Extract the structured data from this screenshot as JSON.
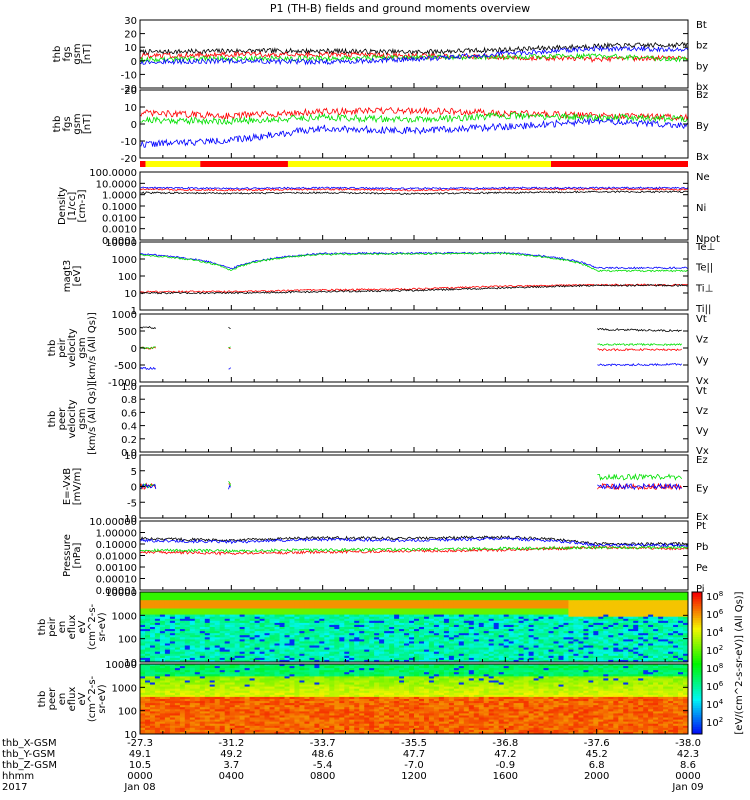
{
  "title": "P1 (TH-B) fields and ground moments overview",
  "colors": {
    "black": "#000000",
    "red": "#ff0000",
    "green": "#00e000",
    "blue": "#0000ff",
    "yellow": "#ffff00"
  },
  "panels": [
    {
      "ylabel": [
        "thb",
        "fgs",
        "gsm",
        "[nT]"
      ],
      "yticks": [
        "30",
        "20",
        "10",
        "0",
        "-10",
        "-20"
      ],
      "legend": [
        "Bt",
        "bz",
        "by",
        "bx"
      ],
      "legend_colors": [
        "black",
        "red",
        "green",
        "blue"
      ]
    },
    {
      "ylabel": [
        "thb",
        "fgs",
        "gsm",
        "[nT]"
      ],
      "yticks": [
        "20",
        "10",
        "0",
        "-10",
        "-20"
      ],
      "legend": [
        "Bz",
        "By",
        "Bx"
      ],
      "legend_colors": [
        "red",
        "green",
        "blue"
      ]
    },
    {
      "ylabel": [
        "Density",
        "[1/cc]",
        "[cm-3]"
      ],
      "yticks": [
        "100.0000",
        "10.0000",
        "1.0000",
        "0.1000",
        "0.0100",
        "0.0010",
        "0.0001"
      ],
      "legend": [
        "Ne",
        "Ni",
        "Npot"
      ],
      "legend_colors": [
        "red",
        "black",
        "blue"
      ]
    },
    {
      "ylabel": [
        "magt3",
        "[eV]"
      ],
      "yticks": [
        "10000",
        "1000",
        "100",
        "10",
        "1"
      ],
      "legend": [
        "Te⊥",
        "Te||",
        "Ti⊥",
        "Ti||"
      ],
      "legend_colors": [
        "red",
        "black",
        "blue",
        "green"
      ]
    },
    {
      "ylabel": [
        "thb",
        "peir",
        "velocity",
        "gsm",
        "[km/s (All Qs)]"
      ],
      "yticks": [
        "1000",
        "500",
        "0",
        "-500",
        "-1000"
      ],
      "legend": [
        "Vt",
        "Vz",
        "Vy",
        "Vx"
      ],
      "legend_colors": [
        "black",
        "red",
        "green",
        "blue"
      ]
    },
    {
      "ylabel": [
        "thb",
        "peer",
        "velocity",
        "gsm",
        "[km/s (All Qs)]"
      ],
      "yticks": [
        "1.0",
        "0.8",
        "0.6",
        "0.4",
        "0.2",
        "0.0"
      ],
      "legend": [
        "Vt",
        "Vz",
        "Vy",
        "Vx"
      ],
      "legend_colors": [
        "black",
        "red",
        "green",
        "blue"
      ]
    },
    {
      "ylabel": [
        "E=-VxB",
        "[mV/m]"
      ],
      "yticks": [
        "10",
        "5",
        "0",
        "-5",
        "-10"
      ],
      "legend": [
        "Ez",
        "Ey",
        "Ex"
      ],
      "legend_colors": [
        "red",
        "green",
        "blue"
      ]
    },
    {
      "ylabel": [
        "Pressure",
        "[nPa]"
      ],
      "yticks": [
        "10.00000",
        "1.00000",
        "0.10000",
        "0.01000",
        "0.00100",
        "0.00010",
        "0.00001"
      ],
      "legend": [
        "Pt",
        "Pb",
        "Pe",
        "Pi"
      ],
      "legend_colors": [
        "black",
        "red",
        "green",
        "blue"
      ]
    },
    {
      "ylabel": [
        "thb",
        "peir",
        "en",
        "eflux",
        "eV",
        "(cm^2-s-",
        "sr-eV)"
      ],
      "yticks": [
        "10000",
        "1000",
        "100",
        "10"
      ],
      "legend": [],
      "legend_colors": []
    },
    {
      "ylabel": [
        "thb",
        "peer",
        "en",
        "eflux",
        "eV",
        "(cm^2-s-",
        "sr-eV)"
      ],
      "yticks": [
        "10000",
        "1000",
        "100",
        "10"
      ],
      "legend": [],
      "legend_colors": []
    }
  ],
  "colorbar": {
    "ticks": [
      "10^8",
      "10^6",
      "10^4",
      "10^2"
    ],
    "label": "[eV/(cm^2-s-sr-eV)] (All Qs)]"
  },
  "orbit": {
    "labels": [
      "thb_X-GSM",
      "thb_Y-GSM",
      "thb_Z-GSM",
      "hhmm",
      "2017"
    ],
    "columns": [
      [
        "-27.3",
        "49.1",
        "10.5",
        "0000",
        "Jan 08"
      ],
      [
        "-31.2",
        "49.2",
        "3.7",
        "0400",
        ""
      ],
      [
        "-33.7",
        "48.6",
        "-5.4",
        "0800",
        ""
      ],
      [
        "-35.5",
        "47.7",
        "-7.0",
        "1200",
        ""
      ],
      [
        "-36.8",
        "47.2",
        "-0.9",
        "1600",
        ""
      ],
      [
        "-37.6",
        "45.2",
        "6.8",
        "2000",
        ""
      ],
      [
        "-38.0",
        "42.3",
        "8.6",
        "0000",
        "Jan 09"
      ]
    ]
  },
  "chart_data": {
    "type": "line",
    "title": "P1 (TH-B) fields and ground moments overview",
    "xlabel": "hhmm",
    "x": [
      "0000",
      "0400",
      "0800",
      "1200",
      "1600",
      "2000",
      "0000"
    ],
    "xlim": [
      "2017 Jan 08 0000",
      "2017 Jan 09 0000"
    ],
    "panels": [
      {
        "ylabel": "thb fgs gsm [nT]",
        "ylim": [
          -25,
          30
        ],
        "series": [
          {
            "name": "Bt",
            "values": [
              4,
              5,
              5,
              4,
              6,
              9,
              10
            ]
          },
          {
            "name": "bz",
            "values": [
              1,
              2,
              2,
              1,
              0,
              -2,
              0
            ]
          },
          {
            "name": "by",
            "values": [
              -2,
              -1,
              -1,
              0,
              0,
              1,
              -2
            ]
          },
          {
            "name": "bx",
            "values": [
              -4,
              -3,
              -4,
              -2,
              3,
              7,
              6
            ]
          }
        ]
      },
      {
        "ylabel": "thb fgs gsm [nT]",
        "ylim": [
          -25,
          25
        ],
        "series": [
          {
            "name": "Bz",
            "values": [
              8,
              6,
              9,
              10,
              8,
              6,
              5
            ]
          },
          {
            "name": "By",
            "values": [
              3,
              2,
              5,
              3,
              6,
              5,
              4
            ]
          },
          {
            "name": "Bx",
            "values": [
              -15,
              -12,
              -3,
              -5,
              -2,
              2,
              -1
            ]
          }
        ]
      },
      {
        "ylabel": "Density [1/cc] [cm-3]",
        "scale": "log",
        "ylim": [
          0.0001,
          100
        ],
        "series": [
          {
            "name": "Ne",
            "values": [
              3,
              2.5,
              3,
              2.5,
              3,
              3,
              3
            ]
          },
          {
            "name": "Ni",
            "values": [
              1.5,
              1.3,
              1.5,
              1.2,
              1.5,
              1.8,
              1.8
            ]
          },
          {
            "name": "Npot",
            "values": [
              4,
              3.5,
              4,
              3.5,
              4,
              4,
              4
            ]
          }
        ]
      },
      {
        "ylabel": "magt3 [eV]",
        "scale": "log",
        "ylim": [
          1,
          10000
        ],
        "series": [
          {
            "name": "Te⊥",
            "values": [
              12,
              12,
              15,
              17,
              25,
              30,
              30
            ]
          },
          {
            "name": "Te||",
            "values": [
              10,
              10,
              12,
              14,
              20,
              28,
              28
            ]
          },
          {
            "name": "Ti⊥",
            "values": [
              2000,
              250,
              2100,
              2200,
              2300,
              300,
              300
            ]
          },
          {
            "name": "Ti||",
            "values": [
              1800,
              200,
              1900,
              2000,
              2100,
              200,
              200
            ]
          }
        ]
      },
      {
        "ylabel": "thb peir velocity gsm [km/s (All Qs)]",
        "ylim": [
          -1000,
          1000
        ],
        "series": [
          {
            "name": "Vt",
            "values": [
              600,
              600,
              null,
              null,
              null,
              550,
              500
            ]
          },
          {
            "name": "Vz",
            "values": [
              0,
              0,
              null,
              null,
              null,
              -50,
              -50
            ]
          },
          {
            "name": "Vy",
            "values": [
              0,
              30,
              null,
              null,
              null,
              100,
              100
            ]
          },
          {
            "name": "Vx",
            "values": [
              -600,
              -600,
              null,
              null,
              null,
              -500,
              -480
            ]
          }
        ]
      },
      {
        "ylabel": "thb peer velocity gsm [km/s (All Qs)]",
        "ylim": [
          0,
          1
        ],
        "series": []
      },
      {
        "ylabel": "E=-VxB [mV/m]",
        "ylim": [
          -10,
          10
        ],
        "series": [
          {
            "name": "Ez",
            "values": [
              0,
              0.5,
              null,
              null,
              null,
              0,
              0
            ]
          },
          {
            "name": "Ey",
            "values": [
              0,
              1,
              null,
              null,
              null,
              3,
              3
            ]
          },
          {
            "name": "Ex",
            "values": [
              0,
              0,
              null,
              null,
              null,
              0,
              0
            ]
          }
        ]
      },
      {
        "ylabel": "Pressure [nPa]",
        "scale": "log",
        "ylim": [
          1e-05,
          10
        ],
        "series": [
          {
            "name": "Pt",
            "values": [
              0.3,
              0.2,
              0.35,
              0.3,
              0.4,
              0.1,
              0.1
            ]
          },
          {
            "name": "Pb",
            "values": [
              0.02,
              0.015,
              0.02,
              0.025,
              0.03,
              0.05,
              0.04
            ]
          },
          {
            "name": "Pe",
            "values": [
              0.03,
              0.025,
              0.03,
              0.035,
              0.04,
              0.05,
              0.05
            ]
          },
          {
            "name": "Pi",
            "values": [
              0.2,
              0.15,
              0.25,
              0.2,
              0.3,
              0.08,
              0.08
            ]
          }
        ]
      },
      {
        "ylabel": "thb peir en eflux eV (cm^2-s-sr-eV)",
        "type": "heatmap",
        "scale": "log",
        "ylim": [
          5,
          25000
        ]
      },
      {
        "ylabel": "thb peer en eflux eV (cm^2-s-sr-eV)",
        "type": "heatmap",
        "scale": "log",
        "ylim": [
          5,
          25000
        ]
      }
    ]
  }
}
